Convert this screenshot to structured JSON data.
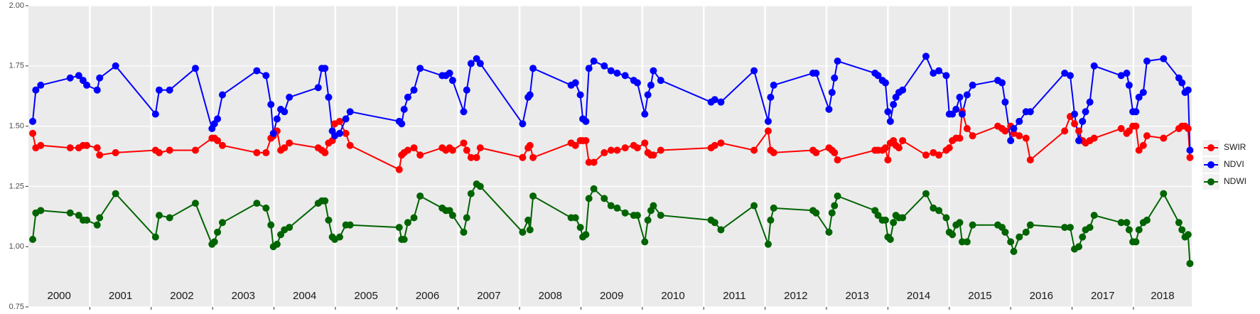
{
  "chart_data": {
    "type": "line",
    "x": [
      2000.07,
      2000.12,
      2000.2,
      2000.68,
      2000.82,
      2000.89,
      2000.95,
      2001.12,
      2001.16,
      2001.42,
      2002.07,
      2002.13,
      2002.3,
      2002.72,
      2002.99,
      2003.03,
      2003.08,
      2003.16,
      2003.72,
      2003.87,
      2003.95,
      2003.99,
      2004.05,
      2004.11,
      2004.17,
      2004.25,
      2004.72,
      2004.78,
      2004.83,
      2004.89,
      2004.95,
      2004.99,
      2005.07,
      2005.17,
      2005.24,
      2006.04,
      2006.08,
      2006.12,
      2006.18,
      2006.28,
      2006.38,
      2006.74,
      2006.8,
      2006.86,
      2006.91,
      2007.09,
      2007.14,
      2007.21,
      2007.3,
      2007.36,
      2008.05,
      2008.14,
      2008.17,
      2008.22,
      2008.84,
      2008.91,
      2008.99,
      2009.03,
      2009.08,
      2009.13,
      2009.21,
      2009.38,
      2009.49,
      2009.59,
      2009.72,
      2009.86,
      2009.92,
      2010.04,
      2010.09,
      2010.14,
      2010.18,
      2010.3,
      2011.12,
      2011.18,
      2011.28,
      2011.82,
      2012.05,
      2012.09,
      2012.14,
      2012.78,
      2012.83,
      2013.04,
      2013.09,
      2013.13,
      2013.18,
      2013.79,
      2013.84,
      2013.91,
      2013.96,
      2014.0,
      2014.04,
      2014.09,
      2014.13,
      2014.18,
      2014.24,
      2014.62,
      2014.74,
      2014.83,
      2014.95,
      2015.0,
      2015.05,
      2015.11,
      2015.17,
      2015.21,
      2015.29,
      2015.38,
      2015.79,
      2015.86,
      2015.91,
      2016.0,
      2016.05,
      2016.14,
      2016.25,
      2016.32,
      2016.88,
      2016.97,
      2017.04,
      2017.11,
      2017.17,
      2017.22,
      2017.29,
      2017.36,
      2017.8,
      2017.89,
      2017.93,
      2017.99,
      2018.04,
      2018.09,
      2018.16,
      2018.22,
      2018.49,
      2018.74,
      2018.79,
      2018.84,
      2018.89,
      2018.92
    ],
    "series": [
      {
        "name": "SWIR",
        "color": "#ff0000",
        "values": [
          1.47,
          1.41,
          1.42,
          1.41,
          1.41,
          1.42,
          1.42,
          1.41,
          1.38,
          1.39,
          1.4,
          1.39,
          1.4,
          1.4,
          1.45,
          1.45,
          1.44,
          1.42,
          1.39,
          1.39,
          1.45,
          1.46,
          1.48,
          1.4,
          1.41,
          1.43,
          1.41,
          1.4,
          1.39,
          1.43,
          1.44,
          1.51,
          1.52,
          1.47,
          1.42,
          1.32,
          1.38,
          1.39,
          1.4,
          1.41,
          1.38,
          1.41,
          1.4,
          1.41,
          1.4,
          1.43,
          1.4,
          1.37,
          1.37,
          1.41,
          1.37,
          1.41,
          1.42,
          1.37,
          1.43,
          1.42,
          1.44,
          1.44,
          1.44,
          1.35,
          1.35,
          1.39,
          1.4,
          1.4,
          1.41,
          1.42,
          1.41,
          1.43,
          1.39,
          1.38,
          1.38,
          1.4,
          1.41,
          1.42,
          1.43,
          1.4,
          1.48,
          1.4,
          1.39,
          1.4,
          1.39,
          1.41,
          1.4,
          1.39,
          1.36,
          1.4,
          1.4,
          1.4,
          1.41,
          1.36,
          1.43,
          1.44,
          1.42,
          1.41,
          1.44,
          1.38,
          1.39,
          1.38,
          1.4,
          1.41,
          1.44,
          1.45,
          1.45,
          1.56,
          1.49,
          1.46,
          1.5,
          1.49,
          1.48,
          1.5,
          1.47,
          1.46,
          1.45,
          1.36,
          1.48,
          1.54,
          1.51,
          1.48,
          1.44,
          1.43,
          1.44,
          1.45,
          1.49,
          1.47,
          1.48,
          1.5,
          1.5,
          1.4,
          1.42,
          1.46,
          1.45,
          1.49,
          1.5,
          1.5,
          1.49,
          1.37
        ]
      },
      {
        "name": "NDVI",
        "color": "#0000ff",
        "values": [
          1.52,
          1.65,
          1.67,
          1.7,
          1.71,
          1.69,
          1.67,
          1.65,
          1.7,
          1.75,
          1.55,
          1.65,
          1.65,
          1.74,
          1.49,
          1.51,
          1.53,
          1.63,
          1.73,
          1.71,
          1.59,
          1.47,
          1.53,
          1.57,
          1.56,
          1.62,
          1.66,
          1.74,
          1.74,
          1.62,
          1.48,
          1.46,
          1.47,
          1.53,
          1.56,
          1.52,
          1.51,
          1.57,
          1.62,
          1.65,
          1.74,
          1.71,
          1.71,
          1.72,
          1.69,
          1.56,
          1.65,
          1.76,
          1.78,
          1.76,
          1.51,
          1.62,
          1.63,
          1.74,
          1.67,
          1.68,
          1.63,
          1.53,
          1.52,
          1.74,
          1.77,
          1.75,
          1.73,
          1.72,
          1.71,
          1.69,
          1.68,
          1.55,
          1.63,
          1.67,
          1.73,
          1.69,
          1.6,
          1.61,
          1.6,
          1.73,
          1.52,
          1.62,
          1.67,
          1.72,
          1.72,
          1.57,
          1.64,
          1.7,
          1.77,
          1.72,
          1.71,
          1.69,
          1.68,
          1.56,
          1.52,
          1.59,
          1.62,
          1.64,
          1.65,
          1.79,
          1.72,
          1.73,
          1.71,
          1.55,
          1.55,
          1.57,
          1.62,
          1.55,
          1.63,
          1.67,
          1.69,
          1.68,
          1.6,
          1.44,
          1.49,
          1.52,
          1.56,
          1.56,
          1.72,
          1.71,
          1.55,
          1.44,
          1.52,
          1.56,
          1.6,
          1.75,
          1.71,
          1.72,
          1.67,
          1.56,
          1.56,
          1.62,
          1.64,
          1.77,
          1.78,
          1.7,
          1.68,
          1.64,
          1.65,
          1.4
        ]
      },
      {
        "name": "NDWI",
        "color": "#006400",
        "values": [
          1.03,
          1.14,
          1.15,
          1.14,
          1.13,
          1.11,
          1.11,
          1.09,
          1.12,
          1.22,
          1.04,
          1.13,
          1.12,
          1.18,
          1.01,
          1.02,
          1.06,
          1.1,
          1.18,
          1.16,
          1.09,
          1.0,
          1.01,
          1.05,
          1.07,
          1.08,
          1.18,
          1.19,
          1.19,
          1.11,
          1.04,
          1.03,
          1.04,
          1.09,
          1.09,
          1.08,
          1.03,
          1.03,
          1.1,
          1.12,
          1.21,
          1.16,
          1.15,
          1.15,
          1.13,
          1.06,
          1.12,
          1.22,
          1.26,
          1.25,
          1.06,
          1.11,
          1.07,
          1.21,
          1.12,
          1.12,
          1.08,
          1.04,
          1.05,
          1.2,
          1.24,
          1.2,
          1.17,
          1.16,
          1.14,
          1.13,
          1.13,
          1.02,
          1.11,
          1.15,
          1.17,
          1.13,
          1.11,
          1.1,
          1.07,
          1.17,
          1.01,
          1.11,
          1.16,
          1.15,
          1.14,
          1.06,
          1.14,
          1.17,
          1.21,
          1.15,
          1.13,
          1.11,
          1.11,
          1.04,
          1.03,
          1.1,
          1.13,
          1.12,
          1.12,
          1.22,
          1.16,
          1.15,
          1.12,
          1.06,
          1.05,
          1.09,
          1.1,
          1.02,
          1.02,
          1.09,
          1.09,
          1.08,
          1.06,
          1.02,
          0.98,
          1.04,
          1.06,
          1.09,
          1.08,
          1.08,
          0.99,
          1.0,
          1.04,
          1.07,
          1.08,
          1.13,
          1.1,
          1.1,
          1.07,
          1.02,
          1.02,
          1.07,
          1.1,
          1.11,
          1.22,
          1.1,
          1.07,
          1.04,
          1.05,
          0.93
        ]
      }
    ],
    "xlim": [
      2000,
      2018.95
    ],
    "xticks": [
      2001,
      2002,
      2003,
      2004,
      2005,
      2006,
      2007,
      2008,
      2009,
      2010,
      2011,
      2012,
      2013,
      2014,
      2015,
      2016,
      2017,
      2018
    ],
    "year_labels": [
      "2000",
      "2001",
      "2002",
      "2003",
      "2004",
      "2005",
      "2006",
      "2007",
      "2008",
      "2009",
      "2010",
      "2011",
      "2012",
      "2013",
      "2014",
      "2015",
      "2016",
      "2017",
      "2018"
    ],
    "ylim": [
      0.75,
      2.0
    ],
    "yticks": [
      {
        "value": 0.75,
        "label": "0.75"
      },
      {
        "value": 1.0,
        "label": "1.00"
      },
      {
        "value": 1.25,
        "label": "1.25"
      },
      {
        "value": 1.5,
        "label": "1.50"
      },
      {
        "value": 1.75,
        "label": "1.75"
      },
      {
        "value": 2.0,
        "label": "2.00"
      }
    ],
    "grid": true,
    "legend": "right"
  }
}
